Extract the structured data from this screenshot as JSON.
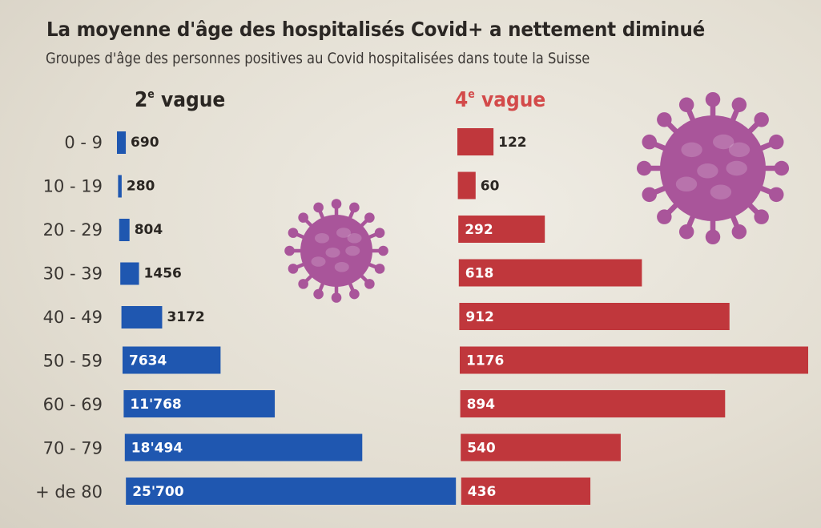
{
  "chart_data": {
    "type": "bar",
    "orientation": "horizontal",
    "title": "La moyenne d'âge des hospitalisés Covid+ a nettement diminué",
    "subtitle": "Groupes d'âge des personnes positives au Covid hospitalisées dans toute la Suisse",
    "xlabel": "",
    "ylabel": "",
    "grid": false,
    "categories": [
      "0 - 9",
      "10 - 19",
      "20 - 29",
      "30 - 39",
      "40 - 49",
      "50 - 59",
      "60 - 69",
      "70 - 79",
      "+ de 80"
    ],
    "series": [
      {
        "name": "2e vague",
        "name_main": "2",
        "name_sup": "e",
        "name_rest": " vague",
        "color": "#1f57b0",
        "values": [
          690,
          280,
          804,
          1456,
          3172,
          7634,
          11768,
          18494,
          25700
        ],
        "labels": [
          "690",
          "280",
          "804",
          "1456",
          "3172",
          "7634",
          "11'768",
          "18'494",
          "25'700"
        ],
        "xlim": [
          0,
          25700
        ]
      },
      {
        "name": "4e vague",
        "name_main": "4",
        "name_sup": "e",
        "name_rest": " vague",
        "color": "#c0373c",
        "values": [
          122,
          60,
          292,
          618,
          912,
          1176,
          894,
          540,
          436
        ],
        "labels": [
          "122",
          "60",
          "292",
          "618",
          "912",
          "1176",
          "894",
          "540",
          "436"
        ],
        "xlim": [
          0,
          1176
        ]
      }
    ]
  },
  "decorations": {
    "virus_icon_color": "#a9559a"
  }
}
